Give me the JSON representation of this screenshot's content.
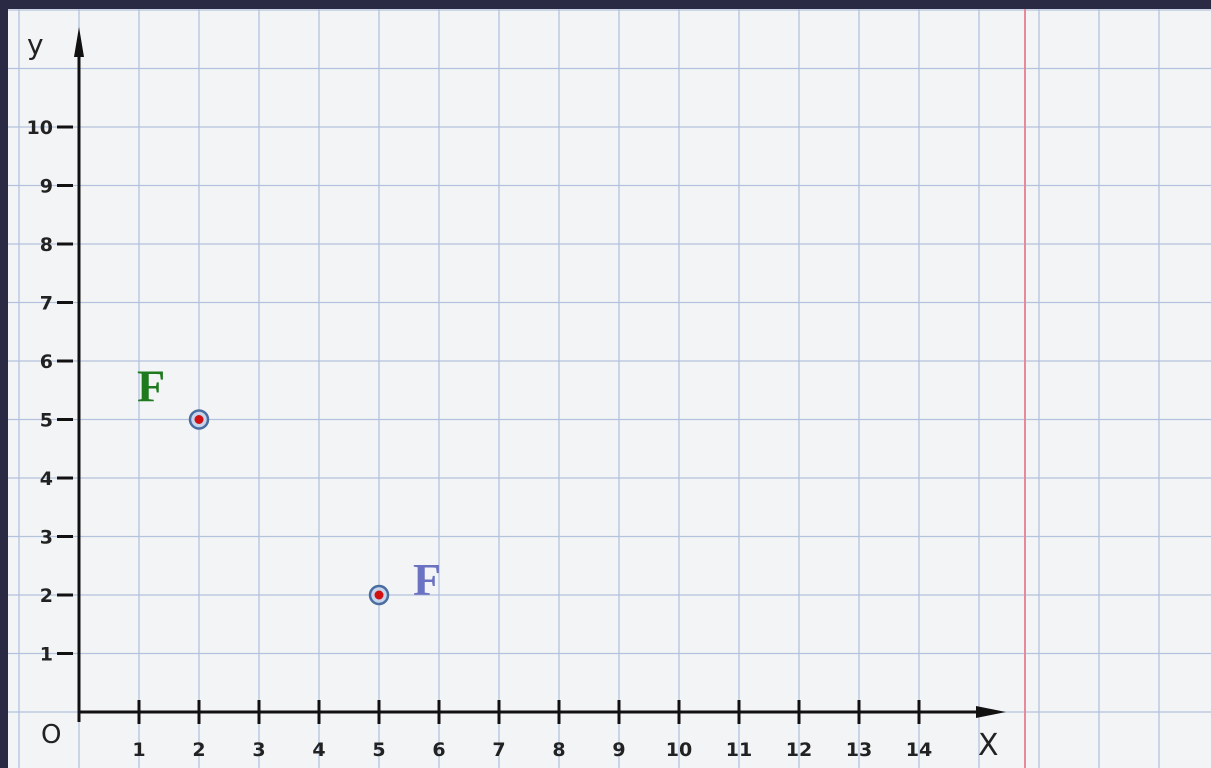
{
  "chart_data": {
    "type": "scatter",
    "title": "",
    "xlabel": "X",
    "ylabel": "y",
    "origin_label": "O",
    "xlim": [
      0,
      14
    ],
    "ylim": [
      0,
      10
    ],
    "x_ticks": [
      "1",
      "2",
      "3",
      "4",
      "5",
      "6",
      "7",
      "8",
      "9",
      "10",
      "11",
      "12",
      "13",
      "14"
    ],
    "y_ticks": [
      "1",
      "2",
      "3",
      "4",
      "5",
      "6",
      "7",
      "8",
      "9",
      "10"
    ],
    "grid": true,
    "points": [
      {
        "x": 2,
        "y": 5,
        "label": "F",
        "label_color": "#1f7a1f",
        "label_side": "upper-left"
      },
      {
        "x": 5,
        "y": 2,
        "label": "F",
        "label_color": "#6b72c2",
        "label_side": "upper-right"
      }
    ],
    "colors": {
      "grid_line": "#b3c2dd",
      "margin_line": "#e58a9a",
      "axis": "#111111",
      "point_fill": "#d01010",
      "point_stroke": "#4a6da0"
    }
  }
}
